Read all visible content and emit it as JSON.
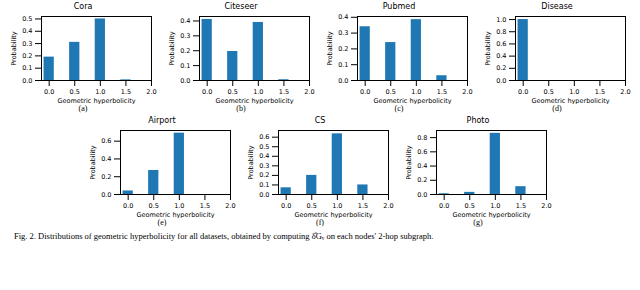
{
  "chart_data": [
    {
      "type": "bar",
      "title": "Cora",
      "caption": "(a)",
      "xlabel": "Geometric hyperbolicity",
      "ylabel": "Probability",
      "x": [
        0,
        0.5,
        1,
        1.5
      ],
      "values": [
        0.19,
        0.31,
        0.5,
        0.005
      ],
      "color": "#1f77b4",
      "xlim": [
        -0.15,
        2.0
      ],
      "xticks": [
        {
          "value": 0,
          "label": "0.0"
        },
        0.5,
        {
          "value": 1,
          "label": "1.0"
        },
        1.5,
        {
          "value": 2,
          "label": "2.0"
        }
      ],
      "ylim": [
        0,
        0.52
      ],
      "yticks": [
        {
          "value": 0,
          "label": "0.0"
        },
        0.1,
        0.2,
        0.3,
        0.4,
        0.5
      ]
    },
    {
      "type": "bar",
      "title": "Citeseer",
      "caption": "(b)",
      "xlabel": "Geometric hyperbolicity",
      "ylabel": "Probability",
      "x": [
        0,
        0.5,
        1,
        1.5
      ],
      "values": [
        0.41,
        0.195,
        0.39,
        0.005
      ],
      "color": "#1f77b4",
      "xlim": [
        -0.15,
        2.0
      ],
      "xticks": [
        {
          "value": 0,
          "label": "0.0"
        },
        0.5,
        {
          "value": 1,
          "label": "1.0"
        },
        1.5,
        {
          "value": 2,
          "label": "2.0"
        }
      ],
      "ylim": [
        0,
        0.43
      ],
      "yticks": [
        {
          "value": 0,
          "label": "0.0"
        },
        0.1,
        0.2,
        0.3,
        0.4
      ]
    },
    {
      "type": "bar",
      "title": "Pubmed",
      "caption": "(c)",
      "xlabel": "Geometric hyperbolicity",
      "ylabel": "Probability",
      "x": [
        0,
        0.5,
        1,
        1.5
      ],
      "values": [
        0.34,
        0.24,
        0.385,
        0.03
      ],
      "color": "#1f77b4",
      "xlim": [
        -0.15,
        2.0
      ],
      "xticks": [
        {
          "value": 0,
          "label": "0.0"
        },
        0.5,
        {
          "value": 1,
          "label": "1.0"
        },
        1.5,
        {
          "value": 2,
          "label": "2.0"
        }
      ],
      "ylim": [
        0,
        0.405
      ],
      "yticks": [
        {
          "value": 0,
          "label": "0.0"
        },
        0.1,
        0.2,
        0.3,
        0.4
      ]
    },
    {
      "type": "bar",
      "title": "Disease",
      "caption": "(d)",
      "xlabel": "Geometric hyperbolicity",
      "ylabel": "Probability",
      "x": [
        0,
        0.5,
        1,
        1.5
      ],
      "values": [
        1.0,
        0,
        0,
        0
      ],
      "color": "#1f77b4",
      "xlim": [
        -0.15,
        2.0
      ],
      "xticks": [
        {
          "value": 0,
          "label": "0.0"
        },
        0.5,
        {
          "value": 1,
          "label": "1.0"
        },
        1.5,
        {
          "value": 2,
          "label": "2.0"
        }
      ],
      "ylim": [
        0,
        1.05
      ],
      "yticks": [
        {
          "value": 0,
          "label": "0.0"
        },
        0.2,
        0.4,
        0.6,
        0.8,
        {
          "value": 1,
          "label": "1.0"
        }
      ]
    },
    {
      "type": "bar",
      "title": "Airport",
      "caption": "(e)",
      "xlabel": "Geometric hyperbolicity",
      "ylabel": "Probability",
      "x": [
        0,
        0.5,
        1,
        1.5
      ],
      "values": [
        0.04,
        0.27,
        0.69,
        0
      ],
      "color": "#1f77b4",
      "xlim": [
        -0.15,
        2.0
      ],
      "xticks": [
        {
          "value": 0,
          "label": "0.0"
        },
        0.5,
        {
          "value": 1,
          "label": "1.0"
        },
        1.5,
        {
          "value": 2,
          "label": "2.0"
        }
      ],
      "ylim": [
        0,
        0.72
      ],
      "yticks": [
        {
          "value": 0,
          "label": "0.0"
        },
        0.2,
        0.4,
        0.6
      ]
    },
    {
      "type": "bar",
      "title": "CS",
      "caption": "(f)",
      "xlabel": "Geometric hyperbolicity",
      "ylabel": "Probability",
      "x": [
        0,
        0.5,
        1,
        1.5
      ],
      "values": [
        0.07,
        0.2,
        0.635,
        0.1
      ],
      "color": "#1f77b4",
      "xlim": [
        -0.15,
        2.0
      ],
      "xticks": [
        {
          "value": 0,
          "label": "0.0"
        },
        0.5,
        {
          "value": 1,
          "label": "1.0"
        },
        1.5,
        {
          "value": 2,
          "label": "2.0"
        }
      ],
      "ylim": [
        0,
        0.67
      ],
      "yticks": [
        {
          "value": 0,
          "label": "0.0"
        },
        0.1,
        0.2,
        0.3,
        0.4,
        0.5,
        0.6
      ]
    },
    {
      "type": "bar",
      "title": "Photo",
      "caption": "(g)",
      "xlabel": "Geometric hyperbolicity",
      "ylabel": "Probability",
      "x": [
        0,
        0.5,
        1,
        1.5
      ],
      "values": [
        0.01,
        0.03,
        0.86,
        0.11
      ],
      "color": "#1f77b4",
      "xlim": [
        -0.15,
        2.0
      ],
      "xticks": [
        {
          "value": 0,
          "label": "0.0"
        },
        0.5,
        {
          "value": 1,
          "label": "1.0"
        },
        1.5,
        {
          "value": 2,
          "label": "2.0"
        }
      ],
      "ylim": [
        0,
        0.9
      ],
      "yticks": [
        {
          "value": 0,
          "label": "0.0"
        },
        0.2,
        0.4,
        0.6,
        0.8
      ]
    }
  ],
  "caption": "Fig. 2.  Distributions of geometric hyperbolicity for all datasets, obtained by computing δ̂Gᵥ on each nodes' 2-hop subgraph."
}
